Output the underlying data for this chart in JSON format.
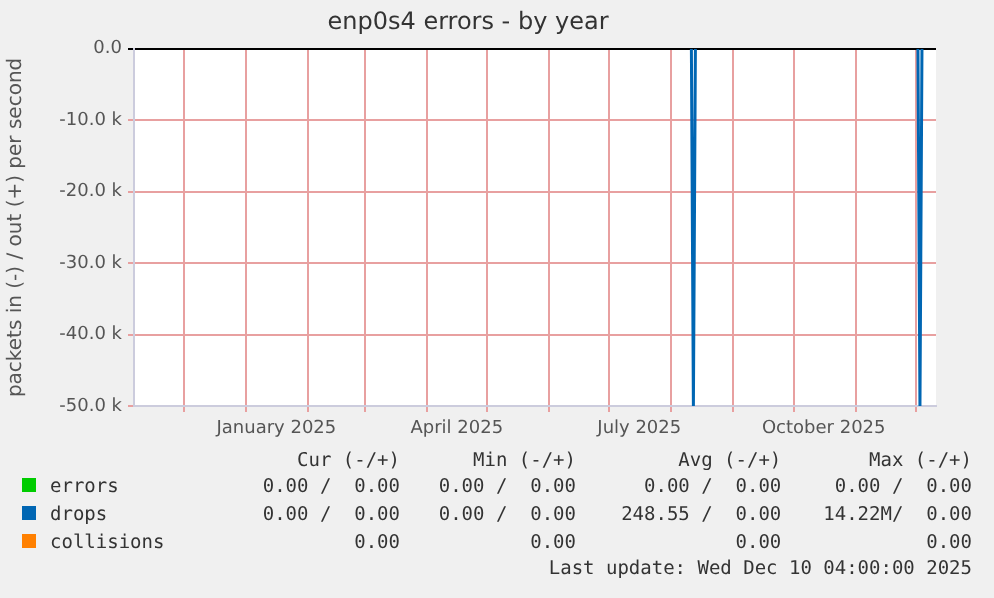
{
  "chart_data": {
    "type": "line",
    "title": "enp0s4 errors - by year",
    "ylabel": "packets in (-) / out (+) per second",
    "xlim": [
      "2024-11-06",
      "2025-12-11"
    ],
    "xticks": [
      {
        "value": "2024-12-01",
        "label": null
      },
      {
        "value": "2025-01-01",
        "label": null
      },
      {
        "value": "2025-01-16",
        "label": "January 2025"
      },
      {
        "value": "2025-02-01",
        "label": null
      },
      {
        "value": "2025-03-01",
        "label": null
      },
      {
        "value": "2025-04-01",
        "label": null
      },
      {
        "value": "2025-04-16",
        "label": "April 2025"
      },
      {
        "value": "2025-05-01",
        "label": null
      },
      {
        "value": "2025-06-01",
        "label": null
      },
      {
        "value": "2025-07-01",
        "label": null
      },
      {
        "value": "2025-07-16",
        "label": "July 2025"
      },
      {
        "value": "2025-08-01",
        "label": null
      },
      {
        "value": "2025-09-01",
        "label": null
      },
      {
        "value": "2025-10-01",
        "label": null
      },
      {
        "value": "2025-10-16",
        "label": "October 2025"
      },
      {
        "value": "2025-11-01",
        "label": null
      },
      {
        "value": "2025-12-01",
        "label": null
      }
    ],
    "ylim": [
      -50000,
      0
    ],
    "yticks": [
      {
        "value": 0,
        "label": "0.0"
      },
      {
        "value": -10000,
        "label": "-10.0 k"
      },
      {
        "value": -20000,
        "label": "-20.0 k"
      },
      {
        "value": -30000,
        "label": "-30.0 k"
      },
      {
        "value": -40000,
        "label": "-40.0 k"
      },
      {
        "value": -50000,
        "label": "-50.0 k"
      }
    ],
    "grid": true,
    "legend": "bottom left",
    "marker": "none",
    "line_style": "solid",
    "series": [
      {
        "name": "errors",
        "color": "#00cc00"
      },
      {
        "name": "drops",
        "color": "#0066b3",
        "x": [
          "2025-08-11",
          "2025-08-12",
          "2025-08-13",
          "2025-10-01",
          "2025-12-02",
          "2025-12-03",
          "2025-12-04"
        ],
        "values": [
          0,
          -50000,
          0,
          null,
          0,
          -50000,
          0
        ]
      },
      {
        "name": "collisions",
        "color": "#ff8000"
      }
    ],
    "annotations": [
      "Cur (-/+)",
      "Min (-/+)",
      "Avg (-/+)",
      "Max (-/+)",
      "0.00 /  0.00",
      "0.00 /  0.00",
      "0.00 /  0.00",
      "0.00 /  0.00",
      "0.00 /  0.00",
      "0.00 /  0.00",
      "248.55 /  0.00",
      "14.22M/  0.00",
      "0.00",
      "0.00",
      "0.00",
      "0.00",
      "Last update: Wed Dec 10 04:00:00 2025"
    ]
  }
}
